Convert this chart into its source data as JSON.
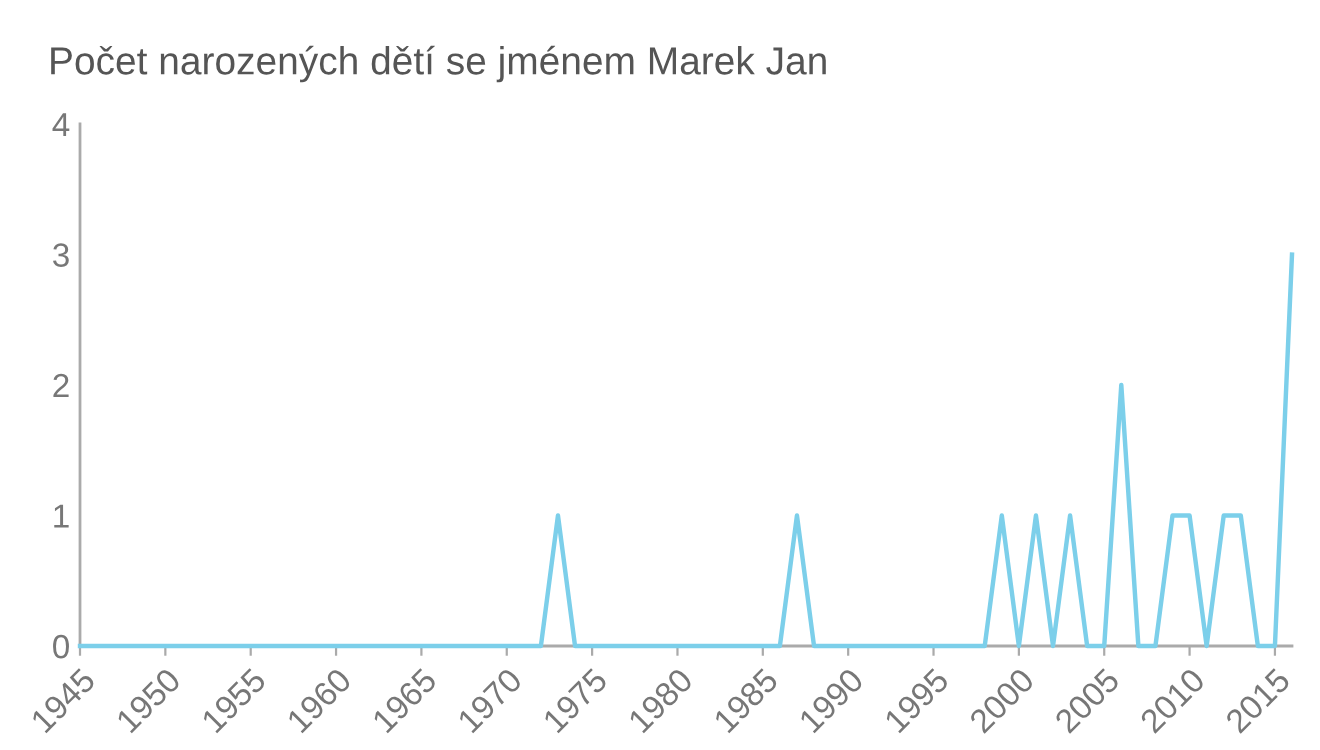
{
  "chart_data": {
    "type": "line",
    "title": "Počet narozených dětí se jménem Marek Jan",
    "x": [
      1945,
      1946,
      1947,
      1948,
      1949,
      1950,
      1951,
      1952,
      1953,
      1954,
      1955,
      1956,
      1957,
      1958,
      1959,
      1960,
      1961,
      1962,
      1963,
      1964,
      1965,
      1966,
      1967,
      1968,
      1969,
      1970,
      1971,
      1972,
      1973,
      1974,
      1975,
      1976,
      1977,
      1978,
      1979,
      1980,
      1981,
      1982,
      1983,
      1984,
      1985,
      1986,
      1987,
      1988,
      1989,
      1990,
      1991,
      1992,
      1993,
      1994,
      1995,
      1996,
      1997,
      1998,
      1999,
      2000,
      2001,
      2002,
      2003,
      2004,
      2005,
      2006,
      2007,
      2008,
      2009,
      2010,
      2011,
      2012,
      2013,
      2014,
      2015,
      2016
    ],
    "series": [
      {
        "color": "#7ccfea",
        "values": [
          0,
          0,
          0,
          0,
          0,
          0,
          0,
          0,
          0,
          0,
          0,
          0,
          0,
          0,
          0,
          0,
          0,
          0,
          0,
          0,
          0,
          0,
          0,
          0,
          0,
          0,
          0,
          0,
          1,
          0,
          0,
          0,
          0,
          0,
          0,
          0,
          0,
          0,
          0,
          0,
          0,
          0,
          1,
          0,
          0,
          0,
          0,
          0,
          0,
          0,
          0,
          0,
          0,
          0,
          1,
          0,
          1,
          0,
          1,
          0,
          0,
          2,
          0,
          0,
          1,
          1,
          0,
          1,
          1,
          0,
          0,
          3
        ]
      }
    ],
    "xlim": [
      1945,
      2016
    ],
    "xticks": [
      1945,
      1950,
      1955,
      1960,
      1965,
      1970,
      1975,
      1980,
      1985,
      1990,
      1995,
      2000,
      2005,
      2010,
      2015
    ],
    "ylim": [
      0,
      4
    ],
    "yticks": [
      0,
      1,
      2,
      3,
      4
    ],
    "grid": false,
    "legend": false,
    "marker": "none",
    "line_style": "solid"
  }
}
